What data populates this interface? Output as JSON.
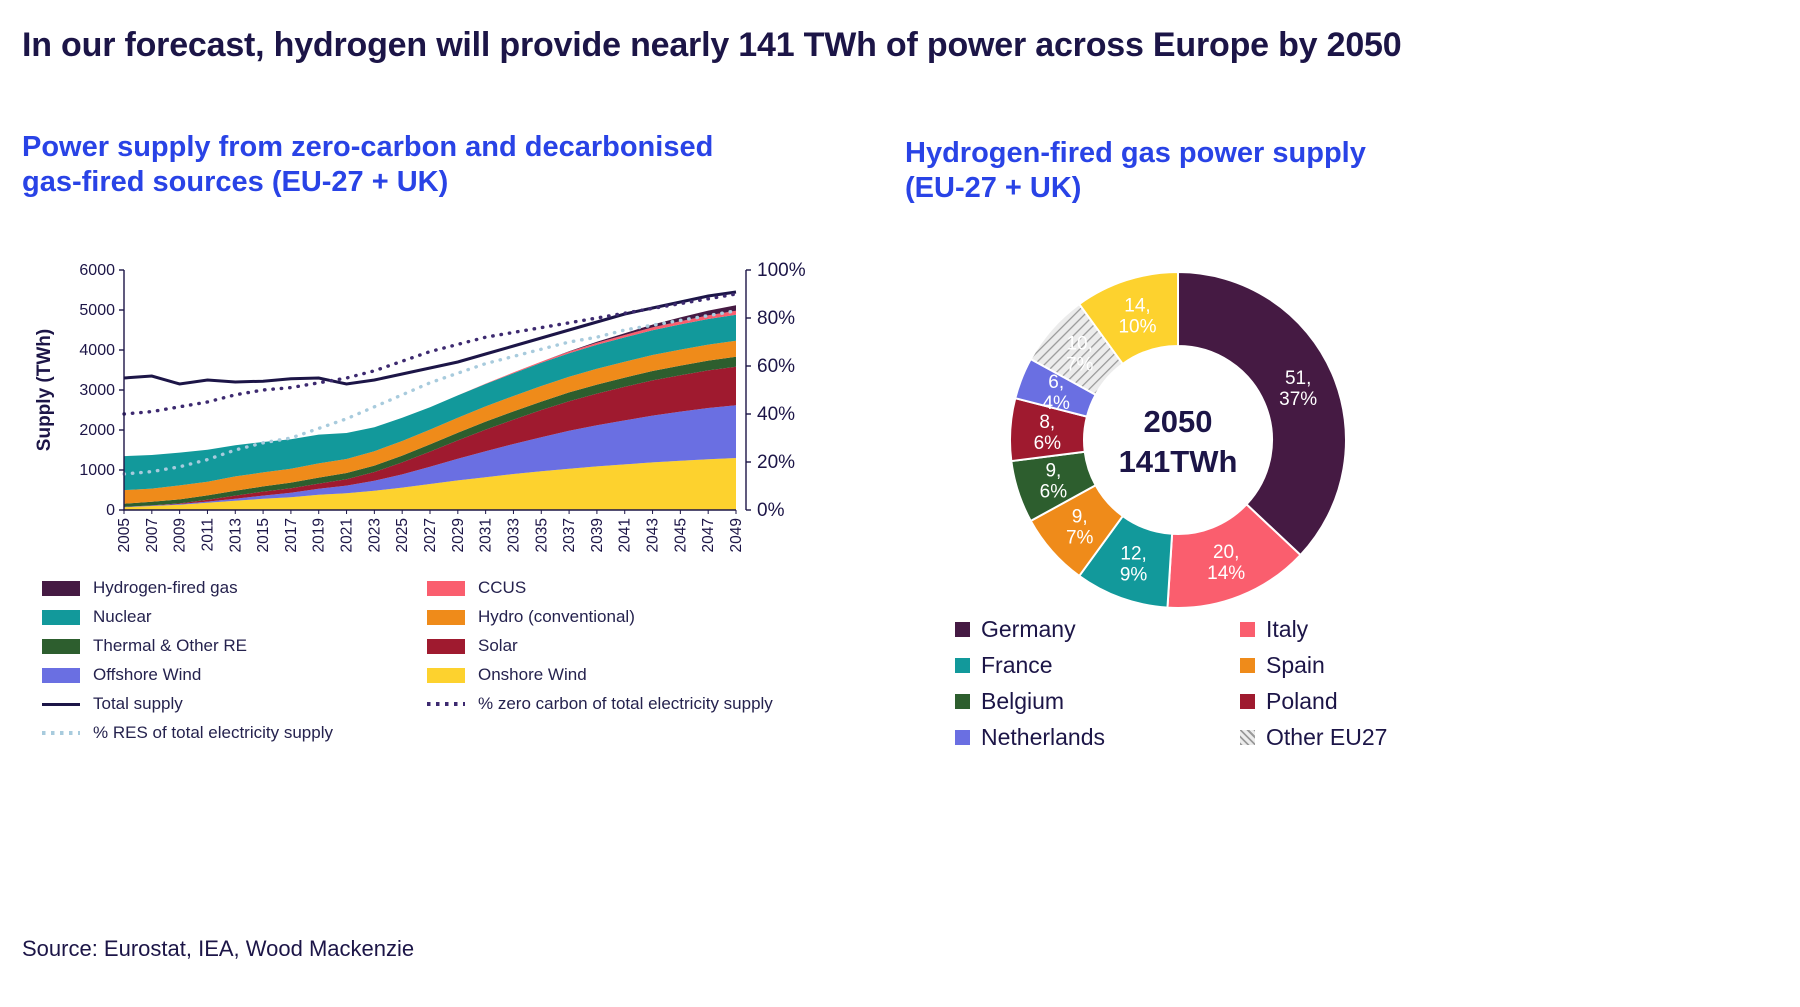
{
  "page": {
    "title": "In our forecast, hydrogen will provide nearly 141 TWh of power across Europe by 2050",
    "source": "Source: Eurostat, IEA, Wood Mackenzie"
  },
  "left_chart": {
    "title_line1": "Power supply from zero-carbon and decarbonised",
    "title_line2": "gas-fired sources (EU-27 + UK)"
  },
  "right_chart": {
    "title_line1": "Hydrogen-fired gas power supply",
    "title_line2": "(EU-27 + UK)"
  },
  "colors": {
    "navy": "#1c1547",
    "heading_blue": "#2943e6"
  },
  "chart_data": [
    {
      "type": "area",
      "title": "Power supply from zero-carbon and decarbonised gas-fired sources (EU-27 + UK)",
      "ylabel": "Supply (TWh)",
      "axis_left": {
        "min": 0,
        "max": 6000,
        "ticks": [
          0,
          1000,
          2000,
          3000,
          4000,
          5000,
          6000
        ]
      },
      "axis_right": {
        "min": 0,
        "max": 100,
        "ticks": [
          "0%",
          "20%",
          "40%",
          "60%",
          "80%",
          "100%"
        ]
      },
      "x": [
        2005,
        2007,
        2009,
        2011,
        2013,
        2015,
        2017,
        2019,
        2021,
        2023,
        2025,
        2027,
        2029,
        2031,
        2033,
        2035,
        2037,
        2039,
        2041,
        2043,
        2045,
        2047,
        2049
      ],
      "stack_note": "series listed bottom-to-top",
      "series": [
        {
          "name": "Onshore Wind",
          "color": "#fdd22e",
          "values": [
            70,
            100,
            130,
            180,
            230,
            280,
            320,
            380,
            420,
            480,
            560,
            650,
            740,
            820,
            900,
            970,
            1030,
            1090,
            1140,
            1190,
            1230,
            1270,
            1300
          ]
        },
        {
          "name": "Offshore Wind",
          "color": "#6a6fe2",
          "values": [
            5,
            10,
            20,
            30,
            50,
            80,
            110,
            150,
            190,
            250,
            330,
            430,
            540,
            650,
            750,
            850,
            950,
            1030,
            1100,
            1170,
            1230,
            1280,
            1320
          ]
        },
        {
          "name": "Solar",
          "color": "#9f1a2f",
          "values": [
            2,
            5,
            15,
            45,
            80,
            100,
            115,
            130,
            160,
            220,
            300,
            380,
            460,
            540,
            610,
            680,
            740,
            790,
            840,
            880,
            910,
            940,
            960
          ]
        },
        {
          "name": "Thermal & Other RE",
          "color": "#2d5e2e",
          "values": [
            80,
            90,
            100,
            110,
            120,
            130,
            140,
            150,
            155,
            160,
            170,
            180,
            190,
            200,
            205,
            210,
            220,
            225,
            230,
            235,
            240,
            245,
            250
          ]
        },
        {
          "name": "Hydro (conventional)",
          "color": "#ef8b1a",
          "values": [
            340,
            330,
            350,
            340,
            360,
            350,
            345,
            355,
            350,
            360,
            365,
            370,
            375,
            380,
            385,
            390,
            390,
            395,
            395,
            400,
            400,
            400,
            400
          ]
        },
        {
          "name": "Nuclear",
          "color": "#12999b",
          "values": [
            850,
            840,
            820,
            800,
            780,
            760,
            740,
            720,
            650,
            600,
            580,
            560,
            560,
            560,
            570,
            580,
            590,
            600,
            610,
            620,
            630,
            640,
            650
          ]
        },
        {
          "name": "CCUS",
          "color": "#fa5e6e",
          "values": [
            0,
            0,
            0,
            0,
            0,
            0,
            0,
            0,
            0,
            0,
            0,
            0,
            0,
            10,
            20,
            30,
            40,
            50,
            60,
            70,
            80,
            90,
            100
          ]
        },
        {
          "name": "Hydrogen-fired gas",
          "color": "#451a43",
          "values": [
            0,
            0,
            0,
            0,
            0,
            0,
            0,
            0,
            0,
            0,
            0,
            0,
            0,
            0,
            0,
            0,
            10,
            25,
            45,
            70,
            95,
            120,
            140
          ]
        }
      ],
      "lines": [
        {
          "name": "Total supply",
          "style": "solid",
          "axis": "left",
          "color": "#1c1547",
          "values": [
            3300,
            3350,
            3150,
            3250,
            3200,
            3220,
            3280,
            3300,
            3150,
            3250,
            3400,
            3550,
            3700,
            3900,
            4100,
            4300,
            4500,
            4700,
            4900,
            5050,
            5200,
            5350,
            5450
          ]
        },
        {
          "name": "% zero carbon of total electricity supply",
          "style": "dotted",
          "axis": "right",
          "color": "#3d2a70",
          "values": [
            40,
            41,
            43,
            45,
            48,
            50,
            51,
            53,
            55,
            58,
            62,
            66,
            69,
            72,
            74,
            76,
            78,
            80,
            82,
            84,
            86,
            88,
            90
          ]
        },
        {
          "name": "% RES of total electricity supply",
          "style": "dotted",
          "axis": "right",
          "color": "#a8cbdd",
          "values": [
            15,
            16,
            18,
            21,
            25,
            28,
            30,
            34,
            38,
            43,
            48,
            53,
            57,
            61,
            64,
            67,
            70,
            72,
            75,
            77,
            79,
            81,
            83
          ]
        }
      ],
      "legend": [
        {
          "label": "Hydrogen-fired gas",
          "swatch": "rect",
          "color": "#451a43"
        },
        {
          "label": "CCUS",
          "swatch": "rect",
          "color": "#fa5e6e"
        },
        {
          "label": "Nuclear",
          "swatch": "rect",
          "color": "#12999b"
        },
        {
          "label": "Hydro (conventional)",
          "swatch": "rect",
          "color": "#ef8b1a"
        },
        {
          "label": "Thermal & Other RE",
          "swatch": "rect",
          "color": "#2d5e2e"
        },
        {
          "label": "Solar",
          "swatch": "rect",
          "color": "#9f1a2f"
        },
        {
          "label": "Offshore Wind",
          "swatch": "rect",
          "color": "#6a6fe2"
        },
        {
          "label": "Onshore Wind",
          "swatch": "rect",
          "color": "#fdd22e"
        },
        {
          "label": "Total supply",
          "swatch": "line",
          "color": "#1c1547"
        },
        {
          "label": "% zero carbon of total electricity supply",
          "swatch": "dotted",
          "color": "#3d2a70"
        },
        {
          "label": "% RES of total electricity supply",
          "swatch": "dotted",
          "color": "#a8cbdd"
        }
      ]
    },
    {
      "type": "pie",
      "donut": true,
      "title": "Hydrogen-fired gas power supply (EU-27 + UK)",
      "units": "TWh",
      "center_label": [
        "2050",
        "141TWh"
      ],
      "segments": [
        {
          "label": "Germany",
          "value": 51,
          "percent": 37,
          "color": "#451a43",
          "label_lines": [
            "51,",
            "37%"
          ]
        },
        {
          "label": "Italy",
          "value": 20,
          "percent": 14,
          "color": "#fa5e6e",
          "label_lines": [
            "20,",
            "14%"
          ]
        },
        {
          "label": "France",
          "value": 12,
          "percent": 9,
          "color": "#12999b",
          "label_lines": [
            "12,",
            "9%"
          ]
        },
        {
          "label": "Spain",
          "value": 9,
          "percent": 7,
          "color": "#ef8b1a",
          "label_lines": [
            "9,",
            "7%"
          ]
        },
        {
          "label": "Belgium",
          "value": 9,
          "percent": 6,
          "color": "#2d5e2e",
          "label_lines": [
            "9,",
            "6%"
          ]
        },
        {
          "label": "Poland",
          "value": 8,
          "percent": 6,
          "color": "#9f1a2f",
          "label_lines": [
            "8,",
            "6%"
          ]
        },
        {
          "label": "Netherlands",
          "value": 6,
          "percent": 4,
          "color": "#6a6fe2",
          "label_lines": [
            "6,",
            "4%"
          ]
        },
        {
          "label": "Other EU27",
          "value": 10,
          "percent": 7,
          "color": "hatch",
          "label_lines": [
            "10,",
            "7%"
          ]
        },
        {
          "label": "",
          "value": 14,
          "percent": 10,
          "color": "#fdd22e",
          "label_lines": [
            "14,",
            "10%"
          ]
        }
      ],
      "legend": [
        {
          "label": "Germany",
          "color": "#451a43"
        },
        {
          "label": "France",
          "color": "#12999b"
        },
        {
          "label": "Belgium",
          "color": "#2d5e2e"
        },
        {
          "label": "Netherlands",
          "color": "#6a6fe2"
        },
        {
          "label": "Italy",
          "color": "#fa5e6e"
        },
        {
          "label": "Spain",
          "color": "#ef8b1a"
        },
        {
          "label": "Poland",
          "color": "#9f1a2f"
        },
        {
          "label": "Other EU27",
          "color": "hatch"
        }
      ]
    }
  ]
}
